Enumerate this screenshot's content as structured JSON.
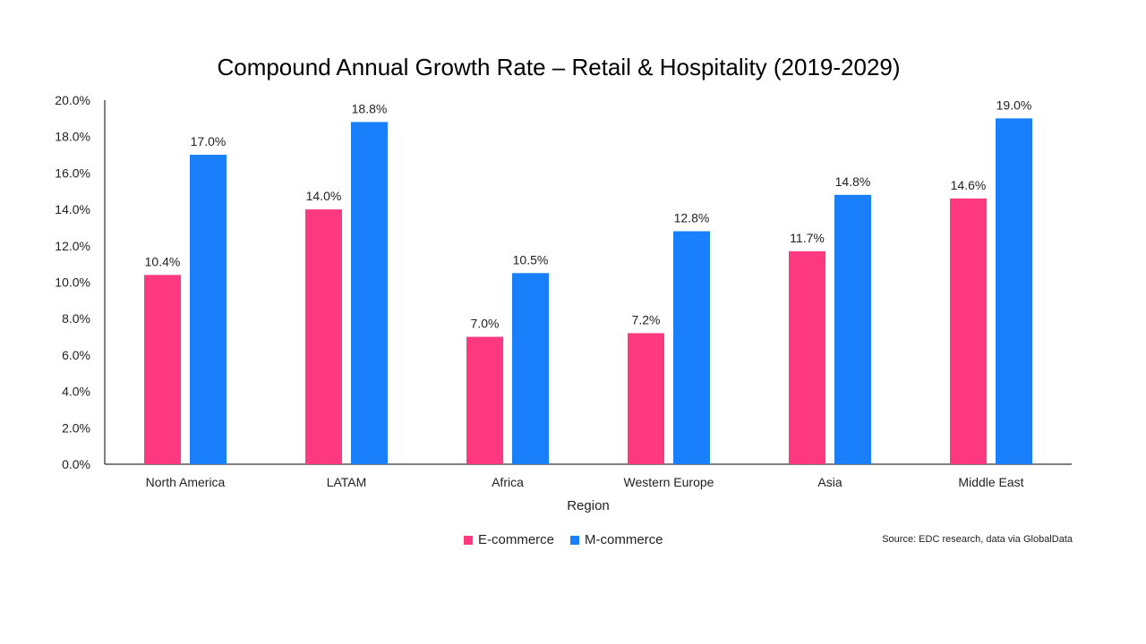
{
  "chart_data": {
    "type": "bar",
    "title": "Compound Annual Growth Rate – Retail & Hospitality (2019-2029)",
    "xlabel": "Region",
    "ylabel": "",
    "ylim": [
      0,
      20
    ],
    "yticks": [
      0,
      2,
      4,
      6,
      8,
      10,
      12,
      14,
      16,
      18,
      20
    ],
    "ytick_labels": [
      "0.0%",
      "2.0%",
      "4.0%",
      "6.0%",
      "8.0%",
      "10.0%",
      "12.0%",
      "14.0%",
      "16.0%",
      "18.0%",
      "20.0%"
    ],
    "categories": [
      "North America",
      "LATAM",
      "Africa",
      "Western Europe",
      "Asia",
      "Middle East"
    ],
    "series": [
      {
        "name": "E-commerce",
        "color": "#FF3980",
        "values": [
          10.4,
          14.0,
          7.0,
          7.2,
          11.7,
          14.6
        ],
        "labels": [
          "10.4%",
          "14.0%",
          "7.0%",
          "7.2%",
          "11.7%",
          "14.6%"
        ]
      },
      {
        "name": "M-commerce",
        "color": "#1A7FFB",
        "values": [
          17.0,
          18.8,
          10.5,
          12.8,
          14.8,
          19.0
        ],
        "labels": [
          "17.0%",
          "18.8%",
          "10.5%",
          "12.8%",
          "14.8%",
          "19.0%"
        ]
      }
    ],
    "grid": false,
    "legend_position": "bottom"
  },
  "source_note": "Source: EDC research, data via GlobalData"
}
